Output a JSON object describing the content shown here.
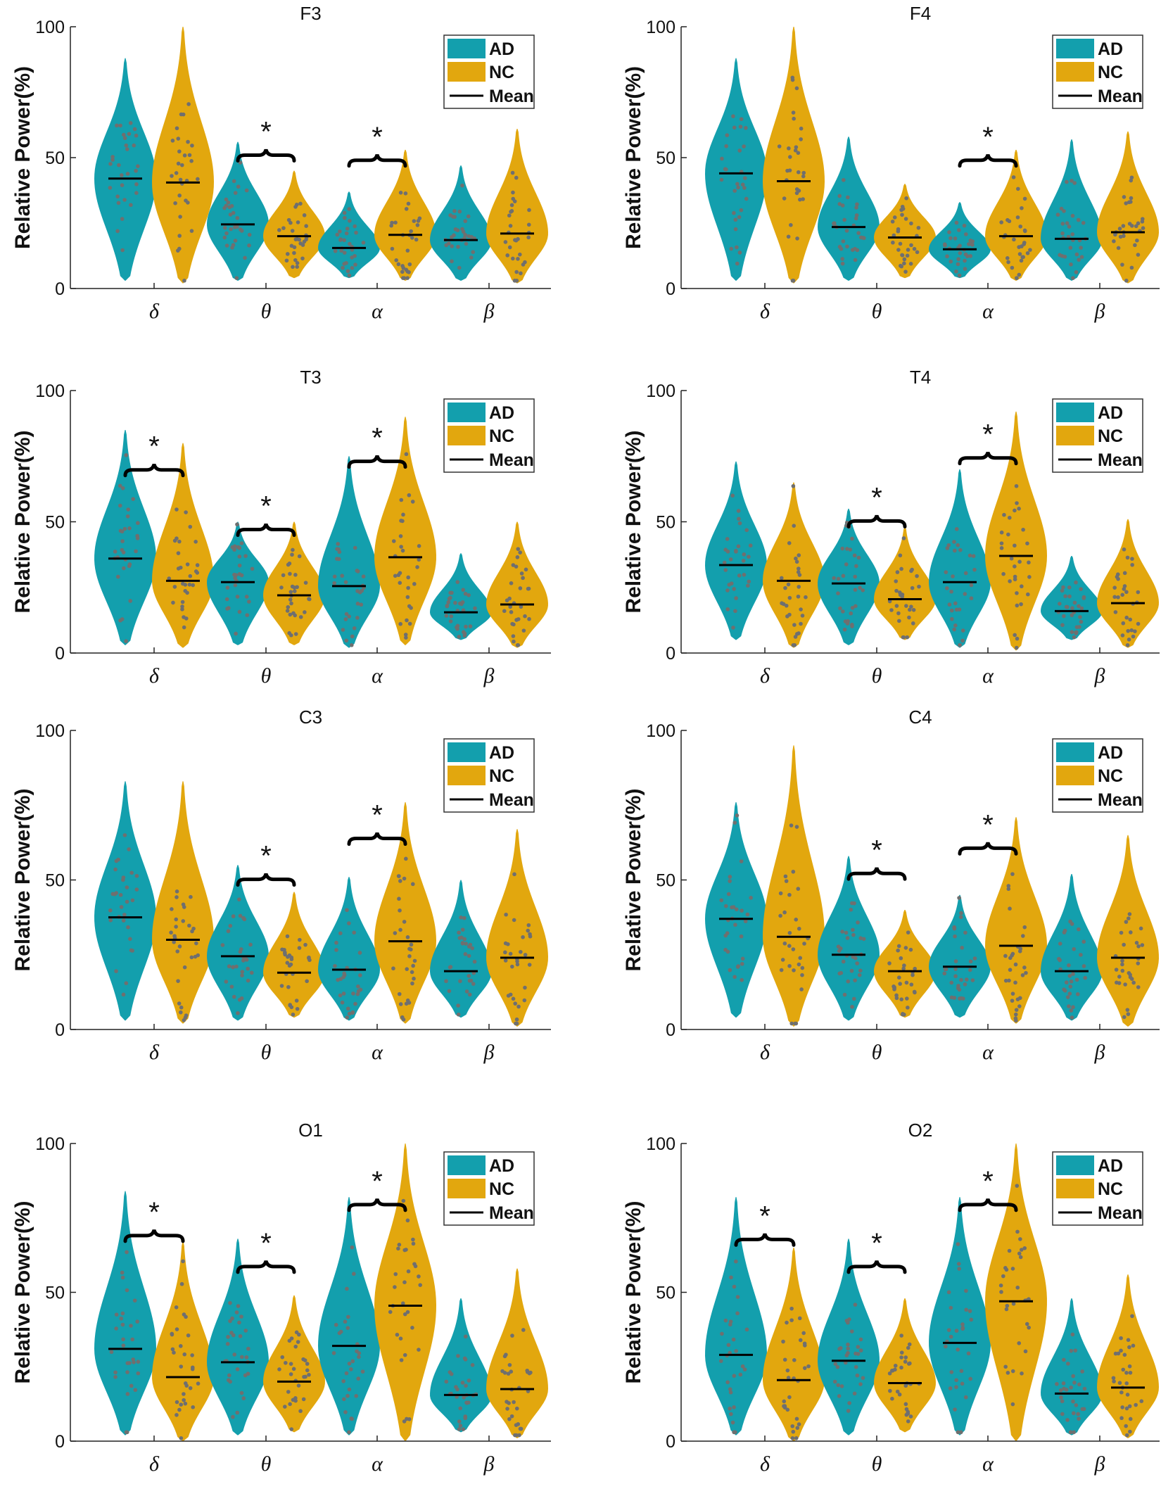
{
  "colors": {
    "AD": "#139fad",
    "NC": "#e2a70e",
    "dot": "#6f6f6f",
    "mean": "#000000",
    "axis": "#222222"
  },
  "legend": {
    "ad": "AD",
    "nc": "NC",
    "mean": "Mean"
  },
  "ylabel": "Relative Power(%)",
  "categories": [
    "δ",
    "θ",
    "α",
    "β"
  ],
  "yticks": [
    "0",
    "50",
    "100"
  ],
  "sig_marker": "*",
  "chart_data": [
    {
      "type": "violin",
      "title": "F3",
      "ylabel": "Relative Power(%)",
      "ylim": [
        0,
        100
      ],
      "categories": [
        "δ",
        "θ",
        "α",
        "β"
      ],
      "series": [
        {
          "name": "AD",
          "mean": [
            42,
            24.5,
            15.5,
            18.5
          ],
          "min": [
            3,
            3,
            4,
            3
          ],
          "max": [
            88,
            56,
            37,
            47
          ]
        },
        {
          "name": "NC",
          "mean": [
            40.5,
            20,
            20.5,
            21
          ],
          "min": [
            2,
            4,
            3,
            2
          ],
          "max": [
            100,
            45,
            53,
            61
          ]
        }
      ],
      "significant": [
        false,
        true,
        true,
        false
      ]
    },
    {
      "type": "violin",
      "title": "F4",
      "ylabel": "Relative Power(%)",
      "ylim": [
        0,
        100
      ],
      "categories": [
        "δ",
        "θ",
        "α",
        "β"
      ],
      "series": [
        {
          "name": "AD",
          "mean": [
            44,
            23.5,
            15,
            19
          ],
          "min": [
            3,
            3,
            4,
            3
          ],
          "max": [
            88,
            58,
            33,
            57
          ]
        },
        {
          "name": "NC",
          "mean": [
            41,
            19.5,
            20,
            21.5
          ],
          "min": [
            2,
            4,
            3,
            2
          ],
          "max": [
            100,
            40,
            53,
            60
          ]
        }
      ],
      "significant": [
        false,
        false,
        true,
        false
      ]
    },
    {
      "type": "violin",
      "title": "T3",
      "ylabel": "Relative Power(%)",
      "ylim": [
        0,
        100
      ],
      "categories": [
        "δ",
        "θ",
        "α",
        "β"
      ],
      "series": [
        {
          "name": "AD",
          "mean": [
            36,
            27,
            25.5,
            15.5
          ],
          "min": [
            3,
            3,
            2,
            5
          ],
          "max": [
            85,
            50,
            75,
            38
          ]
        },
        {
          "name": "NC",
          "mean": [
            27.5,
            22,
            36.5,
            18.5
          ],
          "min": [
            2,
            3,
            3,
            2
          ],
          "max": [
            80,
            50,
            90,
            50
          ]
        }
      ],
      "significant": [
        true,
        true,
        true,
        false
      ]
    },
    {
      "type": "violin",
      "title": "T4",
      "ylabel": "Relative Power(%)",
      "ylim": [
        0,
        100
      ],
      "categories": [
        "δ",
        "θ",
        "α",
        "β"
      ],
      "series": [
        {
          "name": "AD",
          "mean": [
            33.5,
            26.5,
            27,
            16
          ],
          "min": [
            5,
            3,
            2,
            5
          ],
          "max": [
            73,
            55,
            70,
            37
          ]
        },
        {
          "name": "NC",
          "mean": [
            27.5,
            20.5,
            37,
            19
          ],
          "min": [
            2,
            5,
            1,
            2
          ],
          "max": [
            65,
            48,
            92,
            51
          ]
        }
      ],
      "significant": [
        false,
        true,
        true,
        false
      ]
    },
    {
      "type": "violin",
      "title": "C3",
      "ylabel": "Relative Power(%)",
      "ylim": [
        0,
        100
      ],
      "categories": [
        "δ",
        "θ",
        "α",
        "β"
      ],
      "series": [
        {
          "name": "AD",
          "mean": [
            37.5,
            24.5,
            20,
            19.5
          ],
          "min": [
            3,
            3,
            3,
            4
          ],
          "max": [
            83,
            55,
            51,
            50
          ]
        },
        {
          "name": "NC",
          "mean": [
            30,
            19,
            29.5,
            24
          ],
          "min": [
            2,
            4,
            2,
            1
          ],
          "max": [
            83,
            46,
            76,
            67
          ]
        }
      ],
      "significant": [
        false,
        true,
        true,
        false
      ]
    },
    {
      "type": "violin",
      "title": "C4",
      "ylabel": "Relative Power(%)",
      "ylim": [
        0,
        100
      ],
      "categories": [
        "δ",
        "θ",
        "α",
        "β"
      ],
      "series": [
        {
          "name": "AD",
          "mean": [
            37,
            25,
            21,
            19.5
          ],
          "min": [
            4,
            3,
            4,
            3
          ],
          "max": [
            76,
            58,
            45,
            52
          ]
        },
        {
          "name": "NC",
          "mean": [
            31,
            19.5,
            28,
            24
          ],
          "min": [
            1,
            4,
            2,
            1
          ],
          "max": [
            95,
            40,
            71,
            65
          ]
        }
      ],
      "significant": [
        false,
        true,
        true,
        false
      ]
    },
    {
      "type": "violin",
      "title": "O1",
      "ylabel": "Relative Power(%)",
      "ylim": [
        0,
        100
      ],
      "categories": [
        "δ",
        "θ",
        "α",
        "β"
      ],
      "series": [
        {
          "name": "AD",
          "mean": [
            31,
            26.5,
            32,
            15.5
          ],
          "min": [
            2,
            2,
            2,
            3
          ],
          "max": [
            84,
            68,
            82,
            48
          ]
        },
        {
          "name": "NC",
          "mean": [
            21.5,
            20,
            45.5,
            17.5
          ],
          "min": [
            0,
            3,
            0,
            1
          ],
          "max": [
            67,
            49,
            100,
            58
          ]
        }
      ],
      "significant": [
        true,
        true,
        true,
        false
      ]
    },
    {
      "type": "violin",
      "title": "O2",
      "ylabel": "Relative Power(%)",
      "ylim": [
        0,
        100
      ],
      "categories": [
        "δ",
        "θ",
        "α",
        "β"
      ],
      "series": [
        {
          "name": "AD",
          "mean": [
            29,
            27,
            33,
            16
          ],
          "min": [
            2,
            2,
            2,
            2
          ],
          "max": [
            82,
            68,
            82,
            48
          ]
        },
        {
          "name": "NC",
          "mean": [
            20.5,
            19.5,
            47,
            18
          ],
          "min": [
            0,
            3,
            0,
            1
          ],
          "max": [
            65,
            48,
            100,
            56
          ]
        }
      ],
      "significant": [
        true,
        true,
        true,
        false
      ]
    }
  ]
}
